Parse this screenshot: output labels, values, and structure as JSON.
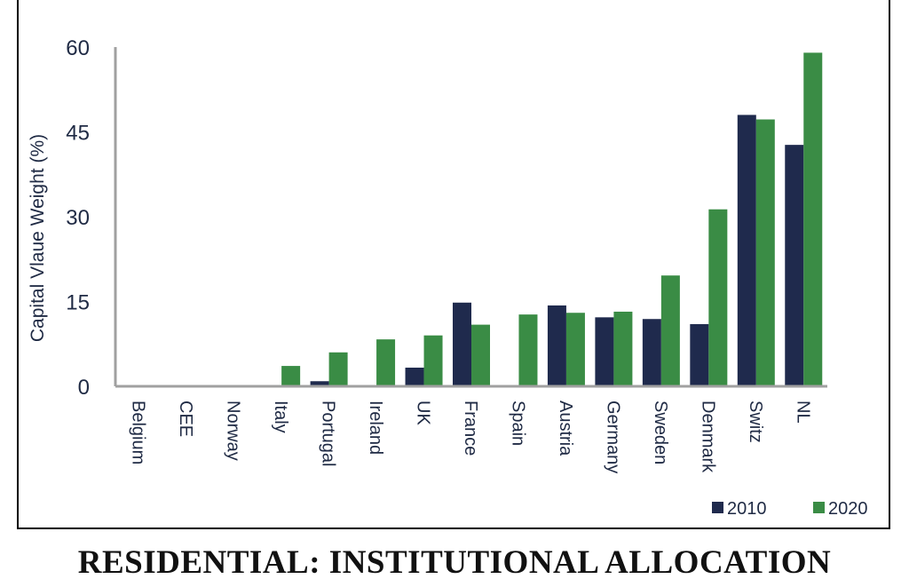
{
  "caption": "RESIDENTIAL: INSTITUTIONAL ALLOCATION",
  "chart_data": {
    "type": "bar",
    "title": "",
    "xlabel": "",
    "ylabel": "Capital Vlaue Weight (%)",
    "ylim": [
      0,
      60
    ],
    "yticks": [
      0,
      15,
      30,
      45,
      60
    ],
    "grid": false,
    "legend_position": "bottom-right",
    "categories": [
      "Belgium",
      "CEE",
      "Norway",
      "Italy",
      "Portugal",
      "Ireland",
      "UK",
      "France",
      "Spain",
      "Austria",
      "Germany",
      "Sweden",
      "Denmark",
      "Switz",
      "NL"
    ],
    "series": [
      {
        "name": "2010",
        "color": "#1f2a4d",
        "values": [
          0,
          0,
          0,
          0,
          0.9,
          0,
          3.3,
          14.8,
          0,
          14.3,
          12.2,
          11.9,
          11.0,
          48.0,
          42.7
        ]
      },
      {
        "name": "2020",
        "color": "#3a8c45",
        "values": [
          0,
          0,
          0,
          3.6,
          6.0,
          8.3,
          9.0,
          10.9,
          12.7,
          13.0,
          13.2,
          19.6,
          31.3,
          47.2,
          59.0
        ]
      }
    ]
  }
}
